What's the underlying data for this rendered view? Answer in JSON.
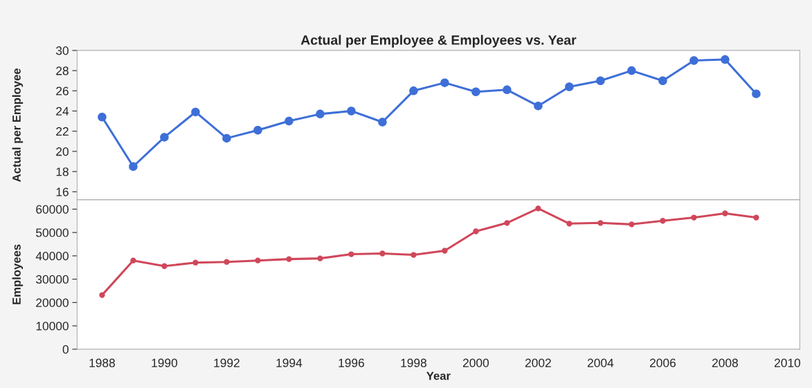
{
  "chart_data": [
    {
      "type": "line",
      "title": "Actual per Employee & Employees vs. Year",
      "ylabel": "Actual per Employee",
      "x": [
        1988,
        1989,
        1990,
        1991,
        1992,
        1993,
        1994,
        1995,
        1996,
        1997,
        1998,
        1999,
        2000,
        2001,
        2002,
        2003,
        2004,
        2005,
        2006,
        2007,
        2008,
        2009
      ],
      "series": [
        {
          "color": "#3e6fd8",
          "values": [
            23.4,
            18.5,
            21.4,
            23.9,
            21.3,
            22.1,
            23.0,
            23.7,
            24.0,
            22.9,
            26.0,
            26.8,
            25.9,
            26.1,
            24.5,
            26.4,
            27.0,
            28.0,
            27.0,
            29.0,
            29.1,
            25.7
          ]
        }
      ],
      "xlim": [
        1987.2,
        2010.4
      ],
      "ylim": [
        15.2,
        30
      ],
      "yticks": [
        16,
        18,
        20,
        22,
        24,
        26,
        28,
        30
      ],
      "tick_labels": "y",
      "grid": false,
      "marker": "circle",
      "line_style": "solid"
    },
    {
      "type": "line",
      "xlabel": "Year",
      "ylabel": "Employees",
      "x": [
        1988,
        1989,
        1990,
        1991,
        1992,
        1993,
        1994,
        1995,
        1996,
        1997,
        1998,
        1999,
        2000,
        2001,
        2002,
        2003,
        2004,
        2005,
        2006,
        2007,
        2008,
        2009
      ],
      "series": [
        {
          "color": "#d0475a",
          "values": [
            23200,
            38000,
            35600,
            37100,
            37400,
            38000,
            38600,
            38900,
            40700,
            41000,
            40400,
            42200,
            50500,
            54100,
            60300,
            53800,
            54100,
            53500,
            55000,
            56400,
            58200,
            56400
          ]
        }
      ],
      "xlim": [
        1987.2,
        2010.4
      ],
      "xticks": [
        1988,
        1990,
        1992,
        1994,
        1996,
        1998,
        2000,
        2002,
        2004,
        2006,
        2008,
        2010
      ],
      "ylim": [
        0,
        64000
      ],
      "yticks": [
        0,
        10000,
        20000,
        30000,
        40000,
        50000,
        60000
      ],
      "grid": false,
      "marker": "circle",
      "line_style": "solid"
    }
  ]
}
